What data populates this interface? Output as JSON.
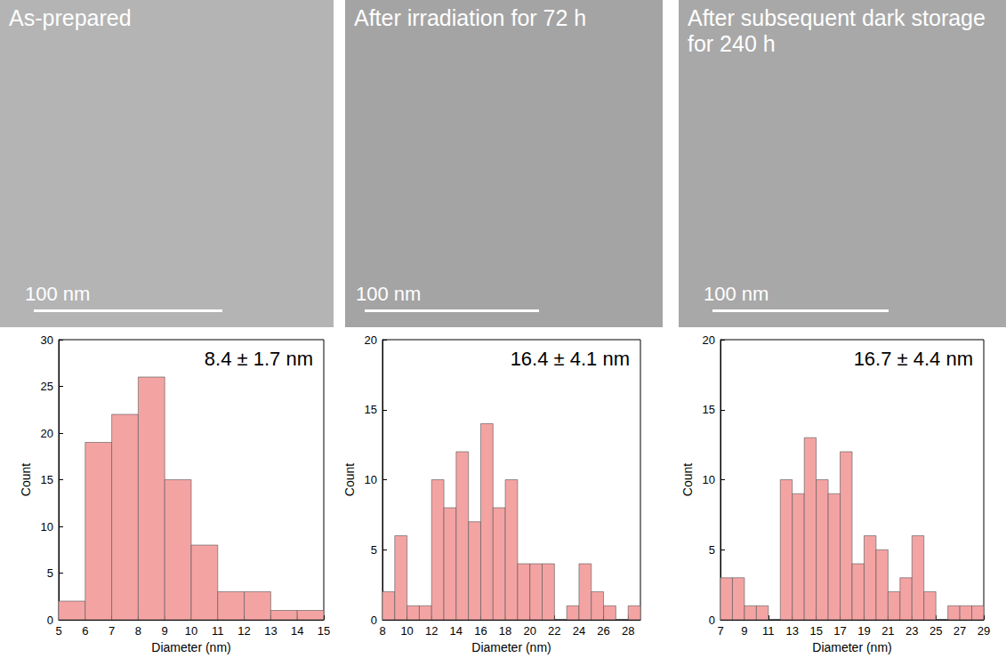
{
  "images": [
    {
      "label": "As-prepared",
      "scale_bar": "100 nm"
    },
    {
      "label": "After irradiation for 72 h",
      "scale_bar": "100 nm"
    },
    {
      "label": "After subsequent dark storage for 240 h",
      "scale_bar": "100 nm"
    }
  ],
  "chart_data": [
    {
      "type": "histogram",
      "annotation": "8.4 ± 1.7 nm",
      "x_label": "Diameter (nm)",
      "y_label": "Count",
      "color": "#f4a3a3",
      "bins": [
        5,
        6,
        7,
        8,
        9,
        10,
        11,
        12,
        13,
        14,
        15
      ],
      "counts": [
        2,
        19,
        22,
        26,
        15,
        8,
        3,
        3,
        1,
        1
      ],
      "xlim": [
        5,
        15
      ],
      "xticks": [
        5,
        6,
        7,
        8,
        9,
        10,
        11,
        12,
        13,
        14,
        15
      ],
      "ylim": [
        0,
        30
      ],
      "yticks": [
        0,
        5,
        10,
        15,
        20,
        25,
        30
      ]
    },
    {
      "type": "histogram",
      "annotation": "16.4 ± 4.1 nm",
      "x_label": "Diameter (nm)",
      "y_label": "Count",
      "color": "#f4a3a3",
      "bins": [
        8,
        9,
        10,
        11,
        12,
        13,
        14,
        15,
        16,
        17,
        18,
        19,
        20,
        21,
        22,
        23,
        24,
        25,
        26,
        27,
        28,
        29
      ],
      "counts": [
        2,
        6,
        1,
        1,
        10,
        8,
        12,
        7,
        14,
        8,
        10,
        4,
        4,
        4,
        0,
        1,
        4,
        2,
        1,
        0,
        1
      ],
      "xlim": [
        8,
        29
      ],
      "xticks": [
        8,
        10,
        12,
        14,
        16,
        18,
        20,
        22,
        24,
        26,
        28
      ],
      "ylim": [
        0,
        20
      ],
      "yticks": [
        0,
        5,
        10,
        15,
        20
      ]
    },
    {
      "type": "histogram",
      "annotation": "16.7 ± 4.4 nm",
      "x_label": "Diameter (nm)",
      "y_label": "Count",
      "color": "#f4a3a3",
      "bins": [
        7,
        8,
        9,
        10,
        11,
        12,
        13,
        14,
        15,
        16,
        17,
        18,
        19,
        20,
        21,
        22,
        23,
        24,
        25,
        26,
        27,
        28,
        29
      ],
      "counts": [
        3,
        3,
        1,
        1,
        0,
        10,
        9,
        13,
        10,
        9,
        12,
        4,
        6,
        5,
        2,
        3,
        6,
        2,
        0,
        1,
        1,
        1
      ],
      "xlim": [
        7,
        29
      ],
      "xticks": [
        7,
        9,
        11,
        13,
        15,
        17,
        19,
        21,
        23,
        25,
        27,
        29
      ],
      "ylim": [
        0,
        20
      ],
      "yticks": [
        0,
        5,
        10,
        15,
        20
      ]
    }
  ]
}
